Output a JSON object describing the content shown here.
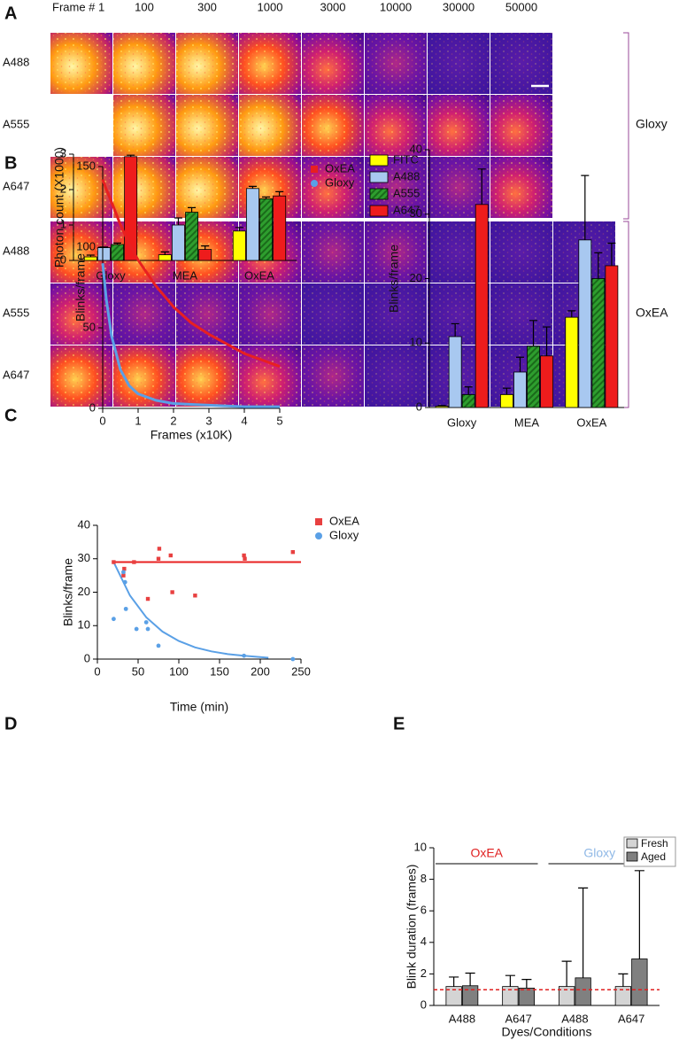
{
  "panel_letters": [
    "A",
    "B",
    "C",
    "D",
    "E"
  ],
  "image_grid": {
    "frame_headers": [
      "Frame # 1",
      "100",
      "300",
      "1000",
      "3000",
      "10000",
      "30000",
      "50000"
    ],
    "groups": [
      {
        "name": "Gloxy",
        "rows": [
          "A488",
          "A555",
          "A647"
        ]
      },
      {
        "name": "OxEA",
        "rows": [
          "A488",
          "A555",
          "A647"
        ]
      }
    ]
  },
  "chart_data": [
    {
      "type": "bar",
      "y_label": "Photon count (X1000)",
      "categories": [
        "Gloxy",
        "MEA",
        "OxEA"
      ],
      "series": [
        {
          "name": "FITC",
          "color": "#ffff00",
          "values": [
            0.1,
            0.16,
            0.83
          ],
          "errors": [
            0.05,
            0.08,
            0.1
          ]
        },
        {
          "name": "A488",
          "color": "#a8c8f0",
          "values": [
            0.36,
            1.0,
            2.03
          ],
          "errors": [
            0.02,
            0.2,
            0.06
          ]
        },
        {
          "name": "A555",
          "color": "#2e9e2e",
          "hatch": true,
          "values": [
            0.45,
            1.36,
            1.74
          ],
          "errors": [
            0.04,
            0.13,
            0.05
          ]
        },
        {
          "name": "A647",
          "color": "#ee1c1c",
          "values": [
            2.93,
            0.31,
            1.82
          ],
          "errors": [
            0.04,
            0.1,
            0.12
          ]
        }
      ],
      "ylim": [
        0,
        3
      ],
      "yticks": [
        0,
        1,
        2,
        3
      ],
      "legend": "right"
    },
    {
      "type": "line",
      "y_label": "Blinks/frame",
      "x_label": "Frames (x10K)",
      "x": [
        0,
        0.1,
        0.25,
        0.5,
        0.75,
        1,
        1.5,
        2,
        2.5,
        3,
        3.5,
        4,
        4.5,
        5
      ],
      "series": [
        {
          "name": "OxEA",
          "color": "#e82020",
          "marker": "square",
          "values": [
            142,
            136,
            128,
            114,
            102,
            92,
            76,
            63,
            53,
            46,
            40,
            34,
            30,
            26
          ]
        },
        {
          "name": "Gloxy",
          "color": "#5aa0e6",
          "marker": "circle",
          "values": [
            90,
            68,
            45,
            24,
            14,
            9,
            5,
            3,
            2.5,
            2,
            1.5,
            1,
            1,
            1
          ]
        }
      ],
      "xlim": [
        0,
        5
      ],
      "xticks": [
        0,
        1,
        2,
        3,
        4,
        5
      ],
      "ylim": [
        0,
        150
      ],
      "yticks": [
        0,
        50,
        100,
        150
      ],
      "legend": "upper right"
    },
    {
      "type": "bar",
      "y_label": "Blinks/frame",
      "categories": [
        "Gloxy",
        "MEA",
        "OxEA"
      ],
      "series": [
        {
          "color": "#ffff00",
          "values": [
            0.2,
            2,
            14
          ],
          "errors": [
            0.1,
            1,
            1
          ]
        },
        {
          "color": "#a8c8f0",
          "values": [
            11,
            5.5,
            26
          ],
          "errors": [
            2,
            2.3,
            10
          ]
        },
        {
          "color": "#2e9e2e",
          "hatch": true,
          "values": [
            2,
            9.5,
            20
          ],
          "errors": [
            1.2,
            4,
            4
          ]
        },
        {
          "color": "#ee1c1c",
          "values": [
            31.5,
            8,
            22
          ],
          "errors": [
            5.5,
            4.5,
            3.5
          ]
        }
      ],
      "ylim": [
        0,
        40
      ],
      "yticks": [
        0,
        10,
        20,
        30,
        40
      ]
    },
    {
      "type": "scatter",
      "y_label": "Blinks/frame",
      "x_label": "Time (min)",
      "series": [
        {
          "name": "OxEA",
          "color": "#e84040",
          "marker": "square",
          "x": [
            20,
            32,
            33,
            45,
            62,
            75,
            76,
            90,
            92,
            120,
            180,
            181,
            240
          ],
          "values": [
            29,
            25,
            27,
            29,
            18,
            30,
            33,
            31,
            20,
            19,
            31,
            30,
            32
          ]
        },
        {
          "name": "Gloxy",
          "color": "#5aa0e6",
          "marker": "circle",
          "x": [
            20,
            32,
            34,
            35,
            48,
            60,
            62,
            75,
            180,
            240
          ],
          "values": [
            12,
            26,
            23,
            15,
            9,
            11,
            9,
            4,
            1,
            0
          ]
        }
      ],
      "fits": [
        {
          "color": "#e82020",
          "x": [
            20,
            250
          ],
          "values": [
            29,
            29
          ]
        },
        {
          "color": "#5aa0e6",
          "x": [
            20,
            40,
            60,
            80,
            100,
            120,
            140,
            160,
            180,
            200,
            210
          ],
          "values": [
            29,
            19,
            12.5,
            8.2,
            5.4,
            3.5,
            2.3,
            1.5,
            1,
            0.6,
            0.4
          ]
        }
      ],
      "xlim": [
        0,
        250
      ],
      "xticks": [
        0,
        50,
        100,
        150,
        200,
        250
      ],
      "ylim": [
        0,
        40
      ],
      "yticks": [
        0,
        10,
        20,
        30,
        40
      ],
      "legend": "upper right"
    },
    {
      "type": "bar",
      "y_label": "Blink duration (frames)",
      "x_label": "Dyes/Conditions",
      "categories": [
        "A488",
        "A647",
        "A488",
        "A647"
      ],
      "groups": [
        {
          "label": "OxEA",
          "color": "#e02020"
        },
        {
          "label": "Gloxy",
          "color": "#8fb8e6"
        }
      ],
      "series": [
        {
          "name": "Fresh",
          "color": "#d4d4d4",
          "values": [
            1.2,
            1.2,
            1.2,
            1.2
          ],
          "errors": [
            0.6,
            0.7,
            1.6,
            0.8
          ]
        },
        {
          "name": "Aged",
          "color": "#808080",
          "values": [
            1.25,
            1.1,
            1.75,
            2.95
          ],
          "errors": [
            0.8,
            0.55,
            5.7,
            5.6
          ]
        }
      ],
      "reference_line": {
        "value": 1,
        "color": "#e02020"
      },
      "ylim": [
        0,
        10
      ],
      "yticks": [
        0,
        2,
        4,
        6,
        8,
        10
      ],
      "legend": "upper right"
    }
  ]
}
